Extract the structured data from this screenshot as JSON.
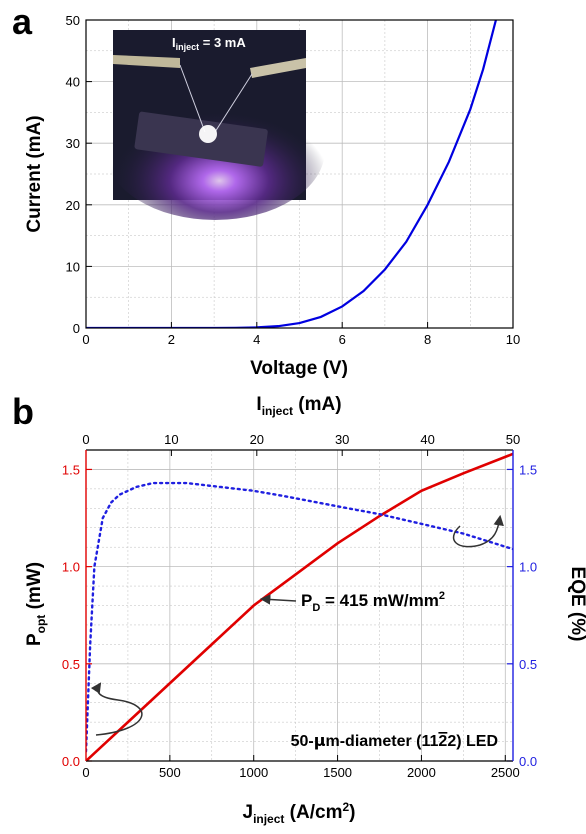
{
  "panels": {
    "a": {
      "label": "a",
      "ylabel": "Current (mA)",
      "xlabel": "Voltage (V)",
      "inset": {
        "label_main": "I",
        "label_sub": "inject",
        "label_rest": " = 3 mA"
      }
    },
    "b": {
      "label": "b",
      "top_xlabel_main": "I",
      "top_xlabel_sub": "inject",
      "top_xlabel_rest": " (mA)",
      "bottom_xlabel_main": "J",
      "bottom_xlabel_sub": "inject",
      "bottom_xlabel_rest": " (A/cm",
      "bottom_xlabel_sup": "2",
      "bottom_xlabel_close": ")",
      "left_ylabel_main": "P",
      "left_ylabel_sub": "opt",
      "left_ylabel_rest": " (mW)",
      "right_ylabel": "EQE (%)",
      "annotation_pd_main": "P",
      "annotation_pd_sub": "D",
      "annotation_pd_rest": " = 415 mW/mm",
      "annotation_pd_sup": "2",
      "annotation_led_pre": "50-",
      "annotation_led_mu": "μ",
      "annotation_led_mid": "m-diameter (11",
      "annotation_led_bar": "2",
      "annotation_led_post": "2) LED"
    }
  },
  "colors": {
    "iv_curve": "#0000e0",
    "popt_curve": "#e00000",
    "eqe_curve": "#1f1fe0",
    "left_axis_b": "#e00000",
    "right_axis_b": "#1f1fe0",
    "grid": "#bdbdbd",
    "inset_bg": "#1a1b2e",
    "inset_text": "#ffffff",
    "arrow": "#333333"
  },
  "chart_data": [
    {
      "type": "line",
      "panel": "a",
      "xlabel": "Voltage (V)",
      "ylabel": "Current (mA)",
      "xlim": [
        0,
        10
      ],
      "ylim": [
        0,
        50
      ],
      "xticks": [
        0,
        2,
        4,
        6,
        8,
        10
      ],
      "yticks": [
        0,
        10,
        20,
        30,
        40,
        50
      ],
      "grid": true,
      "series": [
        {
          "x": [
            0,
            1,
            2,
            3,
            3.5,
            4,
            4.5,
            5,
            5.5,
            6,
            6.5,
            7,
            7.5,
            8,
            8.5,
            9,
            9.3,
            9.6
          ],
          "y": [
            0,
            0,
            0,
            0,
            0.02,
            0.1,
            0.3,
            0.8,
            1.8,
            3.5,
            6,
            9.5,
            14,
            20,
            27,
            35.5,
            42,
            50
          ]
        }
      ]
    },
    {
      "type": "line",
      "panel": "b",
      "xlabel": "J_inject (A/cm2)",
      "ylabel": "P_opt (mW)",
      "y2label": "EQE (%)",
      "top_xlabel": "I_inject (mA)",
      "xlim": [
        0,
        2546
      ],
      "ylim": [
        0,
        1.6
      ],
      "y2lim": [
        0,
        1.6
      ],
      "top_xlim": [
        0,
        50
      ],
      "xticks": [
        0,
        500,
        1000,
        1500,
        2000,
        2500
      ],
      "yticks": [
        0.0,
        0.5,
        1.0,
        1.5
      ],
      "y2ticks": [
        0.0,
        0.5,
        1.0,
        1.5
      ],
      "top_xticks": [
        0,
        10,
        20,
        30,
        40,
        50
      ],
      "grid": true,
      "series": [
        {
          "axis": "left",
          "x": [
            0,
            100,
            250,
            500,
            750,
            1000,
            1250,
            1500,
            1750,
            2000,
            2250,
            2546
          ],
          "y": [
            0,
            0.08,
            0.2,
            0.4,
            0.6,
            0.8,
            0.96,
            1.12,
            1.26,
            1.39,
            1.48,
            1.58
          ]
        },
        {
          "axis": "right",
          "x": [
            0,
            25,
            50,
            100,
            150,
            200,
            300,
            400,
            500,
            600,
            800,
            1000,
            1200,
            1500,
            1750,
            2000,
            2250,
            2546
          ],
          "y": [
            0.05,
            0.6,
            1.0,
            1.25,
            1.33,
            1.37,
            1.41,
            1.43,
            1.43,
            1.43,
            1.41,
            1.39,
            1.36,
            1.31,
            1.27,
            1.22,
            1.17,
            1.09
          ]
        }
      ]
    }
  ]
}
